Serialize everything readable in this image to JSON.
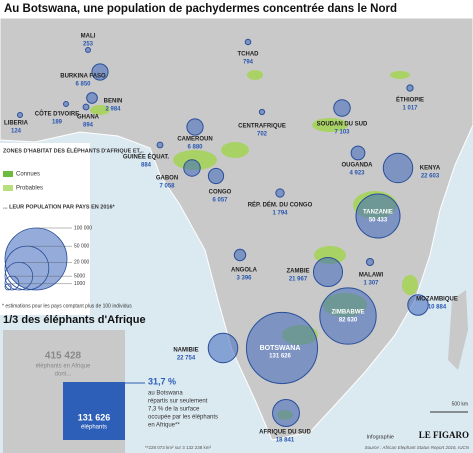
{
  "header": {
    "title": "Au Botswana, une population de pachydermes concentrée dans le Nord"
  },
  "legend": {
    "habitat_title": "ZONES D'HABITAT DES ÉLÉPHANTS D'AFRIQUE ET...",
    "known": "Connues",
    "probable": "Probables",
    "population_title": "... LEUR POPULATION PAR PAYS EN 2016*",
    "sizes": [
      {
        "value": 100000,
        "label": "100 000"
      },
      {
        "value": 50000,
        "label": "50 000"
      },
      {
        "value": 20000,
        "label": "20 000"
      },
      5000,
      1000
    ],
    "footnote": "* estimations pour les pays comptant plus de 100 individus"
  },
  "countries": [
    {
      "name": "MALI",
      "population": 253
    },
    {
      "name": "BURKINA FASO",
      "population": {
        "value": 6850,
        "label": "6 850"
      }
    },
    {
      "name": "BENIN",
      "population": {
        "value": 2984,
        "label": "2 984"
      }
    },
    {
      "name": "CÔTE D'IVOIRE",
      "population": 189
    },
    {
      "name": "GHANA",
      "population": 894
    },
    {
      "name": "LIBERIA",
      "population": 124
    },
    {
      "name": "TCHAD",
      "population": 794
    },
    {
      "name": "ÉTHIOPIE",
      "population": {
        "value": 1017,
        "label": "1 017"
      }
    },
    {
      "name": "SOUDAN DU SUD",
      "population": {
        "value": 7103,
        "label": "7 103"
      }
    },
    {
      "name": "CENTRAFRIQUE",
      "population": 702
    },
    {
      "name": "CAMEROUN",
      "population": {
        "value": 6880,
        "label": "6 880"
      }
    },
    {
      "name": "GUINÉE ÉQUAT.",
      "population": 884
    },
    {
      "name": "GABON",
      "population": {
        "value": 7058,
        "label": "7 058"
      }
    },
    {
      "name": "CONGO",
      "population": {
        "value": 6057,
        "label": "6 057"
      }
    },
    {
      "name": "RÉP. DÉM. DU CONGO",
      "population": {
        "value": 1794,
        "label": "1 794"
      }
    },
    {
      "name": "OUGANDA",
      "population": {
        "value": 4923,
        "label": "4 923"
      }
    },
    {
      "name": "KENYA",
      "population": {
        "value": 22603,
        "label": "22 603"
      }
    },
    {
      "name": "TANZANIE",
      "population": {
        "value": 50433,
        "label": "50 433"
      }
    },
    {
      "name": "ANGOLA",
      "population": {
        "value": 3396,
        "label": "3 396"
      }
    },
    {
      "name": "ZAMBIE",
      "population": {
        "value": 21967,
        "label": "21 967"
      }
    },
    {
      "name": "MALAWI",
      "population": {
        "value": 1307,
        "label": "1 307"
      }
    },
    {
      "name": "MOZAMBIQUE",
      "population": {
        "value": 10884,
        "label": "10 884"
      }
    },
    {
      "name": "ZIMBABWE",
      "population": {
        "value": 82630,
        "label": "82 630"
      }
    },
    {
      "name": "NAMIBIE",
      "population": {
        "value": 22754,
        "label": "22 754"
      }
    },
    {
      "name": "BOTSWANA",
      "population": {
        "value": 131626,
        "label": "131 626"
      }
    },
    {
      "name": "AFRIQUE DU SUD",
      "population": {
        "value": 18841,
        "label": "18 841"
      }
    }
  ],
  "summary": {
    "title": "1/3 des éléphants d'Afrique",
    "total": "415 428",
    "total_text": "éléphants en Afrique",
    "total_more": "dont...",
    "botswana": "131 626",
    "botswana_text": "éléphants",
    "share": "31,7 %",
    "share_text": [
      "au Botswana",
      "répartis sur seulement",
      "7,3 % de la surface",
      "occupée par les éléphants",
      "en Afrique**"
    ],
    "footnote": "**228 073 km² sur 3 132 238 km²"
  },
  "footer": {
    "scale": "500 km",
    "credit": "Infographie",
    "brand": "LE FIGARO",
    "source": "Source : African Elephant Status Report 2016, IUCN"
  }
}
